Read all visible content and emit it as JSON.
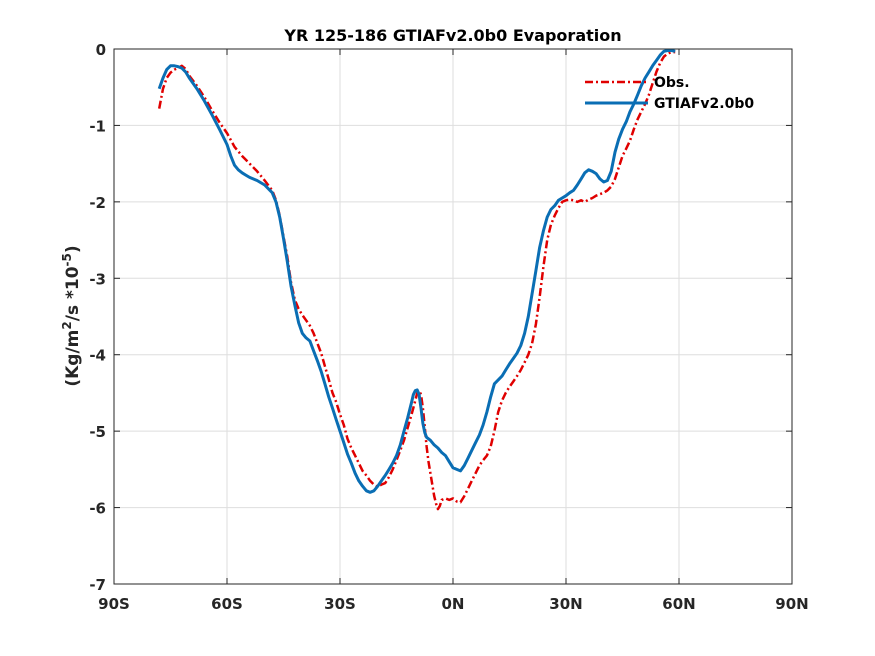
{
  "chart_data": {
    "type": "line",
    "title": "YR 125-186 GTIAFv2.0b0 Evaporation",
    "ylabel": {
      "prefix": "(Kg/m",
      "sup1": "2",
      "middle": "/s *10",
      "sup2": "-5",
      "suffix": ")"
    },
    "xlim": [
      -90,
      90
    ],
    "ylim": [
      -7,
      0
    ],
    "x_ticks": [
      {
        "value": -90,
        "label": "90S"
      },
      {
        "value": -60,
        "label": "60S"
      },
      {
        "value": -30,
        "label": "30S"
      },
      {
        "value": 0,
        "label": "0N"
      },
      {
        "value": 30,
        "label": "30N"
      },
      {
        "value": 60,
        "label": "60N"
      },
      {
        "value": 90,
        "label": "90N"
      }
    ],
    "y_ticks": [
      {
        "value": 0,
        "label": "0"
      },
      {
        "value": -1,
        "label": "-1"
      },
      {
        "value": -2,
        "label": "-2"
      },
      {
        "value": -3,
        "label": "-3"
      },
      {
        "value": -4,
        "label": "-4"
      },
      {
        "value": -5,
        "label": "-5"
      },
      {
        "value": -6,
        "label": "-6"
      },
      {
        "value": -7,
        "label": "-7"
      }
    ],
    "grid": true,
    "legend_position": "top-right",
    "series": [
      {
        "name": "Obs.",
        "color": "#e00000",
        "style": "dash-dot",
        "points": [
          [
            -78,
            -0.78
          ],
          [
            -77,
            -0.52
          ],
          [
            -76,
            -0.38
          ],
          [
            -75,
            -0.31
          ],
          [
            -74,
            -0.27
          ],
          [
            -73,
            -0.25
          ],
          [
            -72,
            -0.22
          ],
          [
            -71,
            -0.26
          ],
          [
            -70,
            -0.35
          ],
          [
            -68,
            -0.48
          ],
          [
            -66,
            -0.63
          ],
          [
            -64,
            -0.8
          ],
          [
            -62,
            -0.96
          ],
          [
            -60,
            -1.1
          ],
          [
            -58,
            -1.28
          ],
          [
            -56,
            -1.4
          ],
          [
            -54,
            -1.5
          ],
          [
            -52,
            -1.6
          ],
          [
            -50,
            -1.72
          ],
          [
            -48,
            -1.85
          ],
          [
            -47,
            -1.98
          ],
          [
            -46,
            -2.18
          ],
          [
            -45,
            -2.45
          ],
          [
            -44,
            -2.72
          ],
          [
            -43,
            -3.05
          ],
          [
            -42,
            -3.28
          ],
          [
            -41,
            -3.4
          ],
          [
            -40,
            -3.48
          ],
          [
            -39,
            -3.55
          ],
          [
            -38,
            -3.62
          ],
          [
            -37,
            -3.72
          ],
          [
            -36,
            -3.85
          ],
          [
            -35,
            -3.98
          ],
          [
            -34,
            -4.15
          ],
          [
            -33,
            -4.32
          ],
          [
            -32,
            -4.5
          ],
          [
            -31,
            -4.62
          ],
          [
            -30,
            -4.78
          ],
          [
            -29,
            -4.92
          ],
          [
            -28,
            -5.1
          ],
          [
            -27,
            -5.22
          ],
          [
            -26,
            -5.32
          ],
          [
            -25,
            -5.42
          ],
          [
            -24,
            -5.52
          ],
          [
            -23,
            -5.58
          ],
          [
            -22,
            -5.65
          ],
          [
            -21,
            -5.7
          ],
          [
            -20,
            -5.73
          ],
          [
            -19,
            -5.7
          ],
          [
            -18,
            -5.68
          ],
          [
            -17,
            -5.6
          ],
          [
            -16,
            -5.5
          ],
          [
            -15,
            -5.38
          ],
          [
            -14,
            -5.25
          ],
          [
            -13,
            -5.12
          ],
          [
            -12,
            -4.95
          ],
          [
            -11,
            -4.78
          ],
          [
            -10,
            -4.6
          ],
          [
            -9.5,
            -4.5
          ],
          [
            -9,
            -4.47
          ],
          [
            -8.5,
            -4.52
          ],
          [
            -8,
            -4.7
          ],
          [
            -7.5,
            -4.95
          ],
          [
            -7,
            -5.2
          ],
          [
            -6.5,
            -5.4
          ],
          [
            -6,
            -5.55
          ],
          [
            -5.5,
            -5.7
          ],
          [
            -5,
            -5.85
          ],
          [
            -4.5,
            -5.95
          ],
          [
            -4,
            -6.02
          ],
          [
            -3.5,
            -5.98
          ],
          [
            -3,
            -5.9
          ],
          [
            -2,
            -5.88
          ],
          [
            -1,
            -5.9
          ],
          [
            0,
            -5.88
          ],
          [
            1,
            -5.92
          ],
          [
            2,
            -5.93
          ],
          [
            3,
            -5.85
          ],
          [
            4,
            -5.75
          ],
          [
            5,
            -5.65
          ],
          [
            6,
            -5.55
          ],
          [
            7,
            -5.45
          ],
          [
            8,
            -5.38
          ],
          [
            9,
            -5.32
          ],
          [
            10,
            -5.2
          ],
          [
            11,
            -5.0
          ],
          [
            12,
            -4.75
          ],
          [
            13,
            -4.6
          ],
          [
            14,
            -4.5
          ],
          [
            15,
            -4.42
          ],
          [
            16,
            -4.35
          ],
          [
            17,
            -4.28
          ],
          [
            18,
            -4.2
          ],
          [
            19,
            -4.1
          ],
          [
            20,
            -4.0
          ],
          [
            21,
            -3.85
          ],
          [
            22,
            -3.6
          ],
          [
            23,
            -3.25
          ],
          [
            24,
            -2.85
          ],
          [
            25,
            -2.5
          ],
          [
            26,
            -2.3
          ],
          [
            27,
            -2.18
          ],
          [
            28,
            -2.08
          ],
          [
            29,
            -2.0
          ],
          [
            30,
            -1.98
          ],
          [
            31,
            -1.97
          ],
          [
            32,
            -1.98
          ],
          [
            33,
            -2.0
          ],
          [
            34,
            -1.98
          ],
          [
            35,
            -2.0
          ],
          [
            36,
            -1.97
          ],
          [
            37,
            -1.95
          ],
          [
            38,
            -1.92
          ],
          [
            39,
            -1.9
          ],
          [
            40,
            -1.88
          ],
          [
            41,
            -1.85
          ],
          [
            42,
            -1.8
          ],
          [
            43,
            -1.7
          ],
          [
            44,
            -1.55
          ],
          [
            45,
            -1.4
          ],
          [
            46,
            -1.3
          ],
          [
            47,
            -1.2
          ],
          [
            48,
            -1.05
          ],
          [
            49,
            -0.92
          ],
          [
            50,
            -0.82
          ],
          [
            51,
            -0.72
          ],
          [
            52,
            -0.6
          ],
          [
            53,
            -0.45
          ],
          [
            54,
            -0.3
          ],
          [
            55,
            -0.18
          ],
          [
            56,
            -0.1
          ],
          [
            57,
            -0.06
          ],
          [
            58,
            -0.04
          ],
          [
            59,
            -0.04
          ]
        ]
      },
      {
        "name": "GTIAFv2.0b0",
        "color": "#0a6eb4",
        "style": "solid",
        "points": [
          [
            -78,
            -0.52
          ],
          [
            -77,
            -0.38
          ],
          [
            -76,
            -0.27
          ],
          [
            -75,
            -0.22
          ],
          [
            -74,
            -0.22
          ],
          [
            -73,
            -0.23
          ],
          [
            -72,
            -0.25
          ],
          [
            -71,
            -0.3
          ],
          [
            -70,
            -0.38
          ],
          [
            -68,
            -0.52
          ],
          [
            -66,
            -0.68
          ],
          [
            -64,
            -0.86
          ],
          [
            -62,
            -1.05
          ],
          [
            -60,
            -1.25
          ],
          [
            -59,
            -1.4
          ],
          [
            -58,
            -1.52
          ],
          [
            -57,
            -1.58
          ],
          [
            -56,
            -1.62
          ],
          [
            -55,
            -1.65
          ],
          [
            -54,
            -1.68
          ],
          [
            -52,
            -1.72
          ],
          [
            -50,
            -1.78
          ],
          [
            -48,
            -1.88
          ],
          [
            -47,
            -2.0
          ],
          [
            -46,
            -2.2
          ],
          [
            -45,
            -2.48
          ],
          [
            -44,
            -2.78
          ],
          [
            -43,
            -3.1
          ],
          [
            -42,
            -3.35
          ],
          [
            -41,
            -3.58
          ],
          [
            -40,
            -3.72
          ],
          [
            -39,
            -3.78
          ],
          [
            -38,
            -3.82
          ],
          [
            -37,
            -3.95
          ],
          [
            -36,
            -4.08
          ],
          [
            -35,
            -4.22
          ],
          [
            -34,
            -4.38
          ],
          [
            -33,
            -4.55
          ],
          [
            -32,
            -4.7
          ],
          [
            -31,
            -4.85
          ],
          [
            -30,
            -5.0
          ],
          [
            -29,
            -5.15
          ],
          [
            -28,
            -5.3
          ],
          [
            -27,
            -5.42
          ],
          [
            -26,
            -5.55
          ],
          [
            -25,
            -5.65
          ],
          [
            -24,
            -5.72
          ],
          [
            -23,
            -5.78
          ],
          [
            -22,
            -5.8
          ],
          [
            -21,
            -5.78
          ],
          [
            -20,
            -5.72
          ],
          [
            -19,
            -5.65
          ],
          [
            -18,
            -5.58
          ],
          [
            -17,
            -5.5
          ],
          [
            -16,
            -5.42
          ],
          [
            -15,
            -5.32
          ],
          [
            -14,
            -5.18
          ],
          [
            -13,
            -5.0
          ],
          [
            -12,
            -4.82
          ],
          [
            -11,
            -4.62
          ],
          [
            -10.5,
            -4.52
          ],
          [
            -10,
            -4.47
          ],
          [
            -9.5,
            -4.46
          ],
          [
            -9,
            -4.52
          ],
          [
            -8.5,
            -4.7
          ],
          [
            -8,
            -4.9
          ],
          [
            -7.5,
            -5.02
          ],
          [
            -7,
            -5.08
          ],
          [
            -6,
            -5.12
          ],
          [
            -5,
            -5.18
          ],
          [
            -4,
            -5.22
          ],
          [
            -3,
            -5.28
          ],
          [
            -2,
            -5.32
          ],
          [
            -1,
            -5.4
          ],
          [
            0,
            -5.48
          ],
          [
            1,
            -5.5
          ],
          [
            2,
            -5.52
          ],
          [
            3,
            -5.45
          ],
          [
            4,
            -5.35
          ],
          [
            5,
            -5.25
          ],
          [
            6,
            -5.15
          ],
          [
            7,
            -5.05
          ],
          [
            8,
            -4.92
          ],
          [
            9,
            -4.75
          ],
          [
            10,
            -4.55
          ],
          [
            11,
            -4.38
          ],
          [
            12,
            -4.33
          ],
          [
            13,
            -4.28
          ],
          [
            14,
            -4.2
          ],
          [
            15,
            -4.12
          ],
          [
            16,
            -4.05
          ],
          [
            17,
            -3.98
          ],
          [
            18,
            -3.88
          ],
          [
            19,
            -3.72
          ],
          [
            20,
            -3.5
          ],
          [
            21,
            -3.2
          ],
          [
            22,
            -2.9
          ],
          [
            23,
            -2.6
          ],
          [
            24,
            -2.38
          ],
          [
            25,
            -2.2
          ],
          [
            26,
            -2.1
          ],
          [
            27,
            -2.05
          ],
          [
            28,
            -1.98
          ],
          [
            29,
            -1.95
          ],
          [
            30,
            -1.92
          ],
          [
            31,
            -1.88
          ],
          [
            32,
            -1.85
          ],
          [
            33,
            -1.78
          ],
          [
            34,
            -1.7
          ],
          [
            35,
            -1.62
          ],
          [
            36,
            -1.58
          ],
          [
            37,
            -1.6
          ],
          [
            38,
            -1.63
          ],
          [
            39,
            -1.7
          ],
          [
            40,
            -1.74
          ],
          [
            41,
            -1.72
          ],
          [
            42,
            -1.6
          ],
          [
            43,
            -1.35
          ],
          [
            44,
            -1.18
          ],
          [
            45,
            -1.05
          ],
          [
            46,
            -0.95
          ],
          [
            47,
            -0.82
          ],
          [
            48,
            -0.72
          ],
          [
            49,
            -0.6
          ],
          [
            50,
            -0.48
          ],
          [
            51,
            -0.38
          ],
          [
            52,
            -0.3
          ],
          [
            53,
            -0.22
          ],
          [
            54,
            -0.15
          ],
          [
            55,
            -0.08
          ],
          [
            56,
            -0.03
          ],
          [
            57,
            -0.02
          ],
          [
            58,
            -0.02
          ],
          [
            59,
            -0.03
          ]
        ]
      }
    ]
  }
}
